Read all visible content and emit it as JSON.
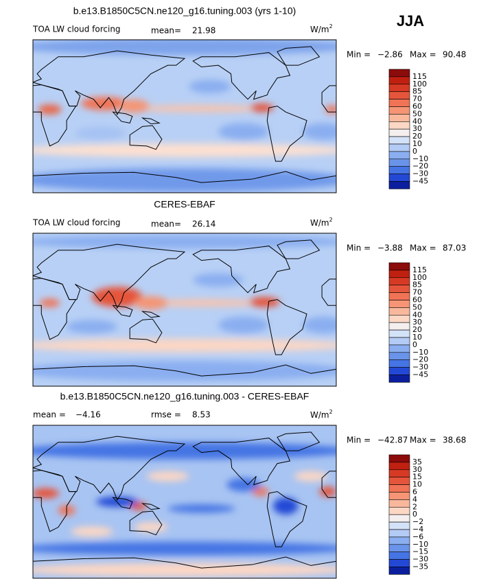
{
  "figure": {
    "season": "JJA",
    "panels": [
      {
        "title": "b.e13.B1850C5CN.ne120_g16.tuning.003 (yrs 1-10)",
        "left_label": "TOA LW cloud forcing",
        "stat1_label": "mean=",
        "stat1": "21.98",
        "units": "W/m",
        "units_sup": "2",
        "min_label": "Min =",
        "min": "−2.86",
        "max_label": "Max =",
        "max": "90.48",
        "levels": [
          "115",
          "100",
          "85",
          "70",
          "60",
          "50",
          "40",
          "30",
          "20",
          "10",
          "0",
          "−10",
          "−20",
          "−30",
          "−45"
        ]
      },
      {
        "title": "CERES-EBAF",
        "left_label": "TOA LW cloud forcing",
        "stat1_label": "mean=",
        "stat1": "26.14",
        "units": "W/m",
        "units_sup": "2",
        "min_label": "Min =",
        "min": "−3.88",
        "max_label": "Max =",
        "max": "87.03",
        "levels": [
          "115",
          "100",
          "85",
          "70",
          "60",
          "50",
          "40",
          "30",
          "20",
          "10",
          "0",
          "−10",
          "−20",
          "−30",
          "−45"
        ]
      },
      {
        "title": "b.e13.B1850C5CN.ne120_g16.tuning.003 - CERES-EBAF",
        "stat1_label": "mean =",
        "stat1": "−4.16",
        "stat2_label": "rmse =",
        "stat2": "8.53",
        "units": "W/m",
        "units_sup": "2",
        "min_label": "Min =",
        "min": "−42.87",
        "max_label": "Max =",
        "max": "38.68",
        "levels": [
          "35",
          "30",
          "15",
          "10",
          "6",
          "4",
          "2",
          "0",
          "−2",
          "−4",
          "−6",
          "−10",
          "−15",
          "−30",
          "−35"
        ]
      }
    ]
  }
}
